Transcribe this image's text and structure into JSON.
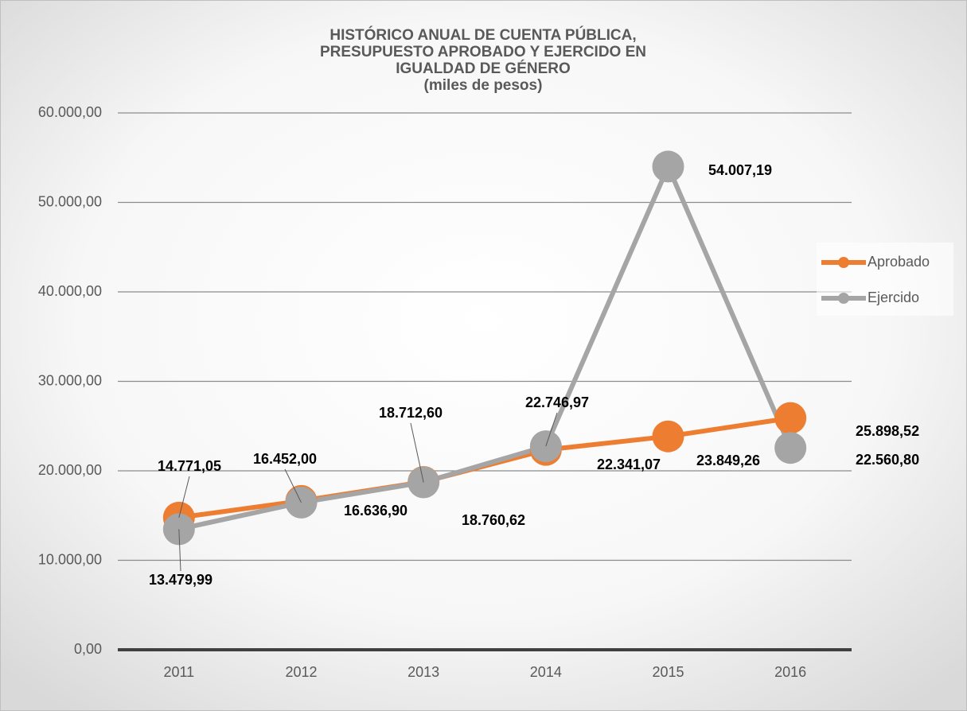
{
  "chart_data": {
    "type": "line",
    "title": [
      "HISTÓRICO ANUAL DE CUENTA PÚBLICA,",
      "PRESUPUESTO APROBADO Y EJERCIDO EN",
      "IGUALDAD DE GÉNERO",
      "(miles de pesos)"
    ],
    "categories": [
      "2011",
      "2012",
      "2013",
      "2014",
      "2015",
      "2016"
    ],
    "series": [
      {
        "name": "Aprobado",
        "color": "#ed7d31",
        "values": [
          14771.05,
          16636.9,
          18760.62,
          22341.07,
          23849.26,
          25898.52
        ],
        "value_labels": [
          "14.771,05",
          "16.636,90",
          "18.760,62",
          "22.341,07",
          "23.849,26",
          "25.898,52"
        ]
      },
      {
        "name": "Ejercido",
        "color": "#a5a5a5",
        "values": [
          13479.99,
          16452.0,
          18712.6,
          22746.97,
          54007.19,
          22560.8
        ],
        "value_labels": [
          "13.479,99",
          "16.452,00",
          "18.712,60",
          "22.746,97",
          "54.007,19",
          "22.560,80"
        ]
      }
    ],
    "ylim": [
      0,
      60000
    ],
    "yticks": [
      {
        "value": 0,
        "label": "0,00"
      },
      {
        "value": 10000,
        "label": "10.000,00"
      },
      {
        "value": 20000,
        "label": "20.000,00"
      },
      {
        "value": 30000,
        "label": "30.000,00"
      },
      {
        "value": 40000,
        "label": "40.000,00"
      },
      {
        "value": 50000,
        "label": "50.000,00"
      },
      {
        "value": 60000,
        "label": "60.000,00"
      }
    ],
    "grid": true,
    "legend": "right"
  }
}
